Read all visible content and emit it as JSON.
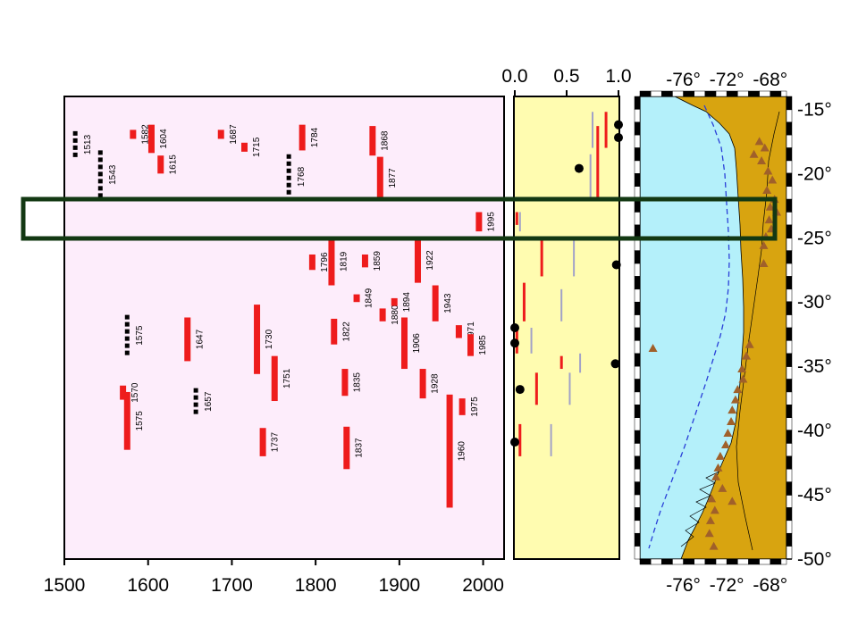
{
  "chart_data": [
    {
      "type": "bar",
      "panel": "rupture-history",
      "xlim": [
        1500,
        2025
      ],
      "ylim": [
        -50,
        -14
      ],
      "x_ticks": [
        "1500",
        "1600",
        "1700",
        "1800",
        "1900",
        "2000"
      ],
      "events": [
        {
          "year": "1513",
          "start": -16.7,
          "end": -18.8,
          "style": "dashed"
        },
        {
          "year": "1543",
          "start": -18.2,
          "end": -22.0,
          "style": "dashed"
        },
        {
          "year": "1582",
          "start": -16.6,
          "end": -17.3,
          "style": "solid"
        },
        {
          "year": "1604",
          "start": -16.2,
          "end": -18.4,
          "style": "solid"
        },
        {
          "year": "1615",
          "start": -18.6,
          "end": -20.0,
          "style": "solid"
        },
        {
          "year": "1687",
          "start": -16.6,
          "end": -17.3,
          "style": "solid"
        },
        {
          "year": "1715",
          "start": -17.6,
          "end": -18.3,
          "style": "solid"
        },
        {
          "year": "1784",
          "start": -16.2,
          "end": -18.2,
          "style": "solid"
        },
        {
          "year": "1768",
          "start": -18.5,
          "end": -22.0,
          "style": "dashed"
        },
        {
          "year": "1868",
          "start": -16.3,
          "end": -18.6,
          "style": "solid"
        },
        {
          "year": "1877",
          "start": -18.7,
          "end": -22.0,
          "style": "solid"
        },
        {
          "year": "1995",
          "start": -23.0,
          "end": -24.5,
          "style": "solid"
        },
        {
          "year": "1796",
          "start": -26.3,
          "end": -27.5,
          "style": "solid"
        },
        {
          "year": "1819",
          "start": -25.0,
          "end": -28.7,
          "style": "solid"
        },
        {
          "year": "1859",
          "start": -26.3,
          "end": -27.3,
          "style": "solid"
        },
        {
          "year": "1922",
          "start": -25.0,
          "end": -28.5,
          "style": "solid"
        },
        {
          "year": "1849",
          "start": -29.4,
          "end": -30.0,
          "style": "solid"
        },
        {
          "year": "1880",
          "start": -30.5,
          "end": -31.5,
          "style": "solid"
        },
        {
          "year": "1894",
          "start": -29.7,
          "end": -30.3,
          "style": "solid"
        },
        {
          "year": "1943",
          "start": -28.7,
          "end": -31.5,
          "style": "solid"
        },
        {
          "year": "1575",
          "start": -31.0,
          "end": -34.2,
          "style": "dashed"
        },
        {
          "year": "1647",
          "start": -31.2,
          "end": -34.6,
          "style": "solid"
        },
        {
          "year": "1730",
          "start": -30.2,
          "end": -35.6,
          "style": "solid"
        },
        {
          "year": "1822",
          "start": -31.3,
          "end": -33.3,
          "style": "solid"
        },
        {
          "year": "1906",
          "start": -31.2,
          "end": -35.2,
          "style": "solid"
        },
        {
          "year": "1971",
          "start": -31.8,
          "end": -32.8,
          "style": "solid"
        },
        {
          "year": "1985",
          "start": -32.5,
          "end": -34.2,
          "style": "solid"
        },
        {
          "year": "1751",
          "start": -34.2,
          "end": -37.7,
          "style": "solid"
        },
        {
          "year": "1835",
          "start": -35.2,
          "end": -37.3,
          "style": "solid"
        },
        {
          "year": "1928",
          "start": -35.2,
          "end": -37.5,
          "style": "solid"
        },
        {
          "year": "1570",
          "start": -36.5,
          "end": -37.6,
          "style": "solid"
        },
        {
          "year": "1657",
          "start": -36.7,
          "end": -38.8,
          "style": "dashed"
        },
        {
          "year": "1975",
          "start": -37.5,
          "end": -38.8,
          "style": "solid"
        },
        {
          "year": "1575",
          "start": -37.0,
          "end": -41.5,
          "style": "solid"
        },
        {
          "year": "1737",
          "start": -39.8,
          "end": -42.0,
          "style": "solid"
        },
        {
          "year": "1837",
          "start": -39.7,
          "end": -43.0,
          "style": "solid"
        },
        {
          "year": "1960",
          "start": -37.2,
          "end": -46.0,
          "style": "solid"
        }
      ]
    },
    {
      "type": "segments",
      "panel": "fraction",
      "xlim": [
        0.0,
        1.0
      ],
      "ylim": [
        -50,
        -14
      ],
      "x_ticks": [
        "0.0",
        "0.5",
        "1.0"
      ],
      "red_segments": [
        {
          "x": 0.88,
          "y1": -15.2,
          "y2": -18.0
        },
        {
          "x": 0.8,
          "y1": -16.3,
          "y2": -22.0
        },
        {
          "x": 0.02,
          "y1": -23.0,
          "y2": -24.0
        },
        {
          "x": 0.26,
          "y1": -25.0,
          "y2": -28.0
        },
        {
          "x": 0.09,
          "y1": -28.5,
          "y2": -31.5
        },
        {
          "x": 0.02,
          "y1": -32.0,
          "y2": -34.0
        },
        {
          "x": 0.45,
          "y1": -34.2,
          "y2": -35.2
        },
        {
          "x": 0.21,
          "y1": -35.5,
          "y2": -38.0
        },
        {
          "x": 0.05,
          "y1": -39.5,
          "y2": -42.0
        }
      ],
      "gray_segments": [
        {
          "x": 0.75,
          "y1": -15.2,
          "y2": -18.0
        },
        {
          "x": 0.73,
          "y1": -18.5,
          "y2": -22.0
        },
        {
          "x": 0.05,
          "y1": -23.0,
          "y2": -24.5
        },
        {
          "x": 0.57,
          "y1": -25.0,
          "y2": -28.0
        },
        {
          "x": 0.45,
          "y1": -29.0,
          "y2": -31.5
        },
        {
          "x": 0.16,
          "y1": -32.0,
          "y2": -34.0
        },
        {
          "x": 0.63,
          "y1": -34.0,
          "y2": -35.5
        },
        {
          "x": 0.53,
          "y1": -35.5,
          "y2": -38.0
        },
        {
          "x": 0.35,
          "y1": -39.5,
          "y2": -42.0
        }
      ],
      "dots": [
        {
          "x": 1.0,
          "y": -16.2
        },
        {
          "x": 1.0,
          "y": -17.2
        },
        {
          "x": 0.62,
          "y": -19.6
        },
        {
          "x": 0.98,
          "y": -27.1
        },
        {
          "x": 0.0,
          "y": -32.0
        },
        {
          "x": 0.0,
          "y": -33.2
        },
        {
          "x": 0.97,
          "y": -34.8
        },
        {
          "x": 0.05,
          "y": -36.8
        },
        {
          "x": 0.0,
          "y": -40.9
        }
      ]
    },
    {
      "type": "map",
      "panel": "chile-map",
      "xlim": [
        -80,
        -66.5
      ],
      "ylim": [
        -50,
        -14
      ],
      "x_ticks": [
        "-76°",
        "-72°",
        "-68°"
      ],
      "y_ticks": [
        "-15°",
        "-20°",
        "-25°",
        "-30°",
        "-35°",
        "-40°",
        "-45°",
        "-50°"
      ],
      "ocean_color": "#b4f0fa",
      "land_color": "#d8a410",
      "volcano_color": "#a0602a",
      "volcanoes": [
        [
          -69.0,
          -17.5
        ],
        [
          -68.5,
          -18.0
        ],
        [
          -69.5,
          -18.5
        ],
        [
          -68.8,
          -19.0
        ],
        [
          -68.2,
          -19.8
        ],
        [
          -67.8,
          -20.5
        ],
        [
          -68.3,
          -21.3
        ],
        [
          -67.6,
          -22.0
        ],
        [
          -68.0,
          -22.6
        ],
        [
          -67.4,
          -23.0
        ],
        [
          -68.1,
          -23.6
        ],
        [
          -67.9,
          -24.3
        ],
        [
          -68.4,
          -24.9
        ],
        [
          -68.6,
          -25.6
        ],
        [
          -68.6,
          -27.0
        ],
        [
          -69.9,
          -33.3
        ],
        [
          -70.2,
          -34.2
        ],
        [
          -70.6,
          -35.2
        ],
        [
          -70.5,
          -36.0
        ],
        [
          -71.0,
          -36.8
        ],
        [
          -71.2,
          -37.6
        ],
        [
          -71.5,
          -38.4
        ],
        [
          -71.6,
          -39.3
        ],
        [
          -71.9,
          -40.2
        ],
        [
          -72.1,
          -41.1
        ],
        [
          -72.6,
          -42.0
        ],
        [
          -72.8,
          -42.9
        ],
        [
          -73.0,
          -43.6
        ],
        [
          -72.4,
          -44.5
        ],
        [
          -73.4,
          -45.3
        ],
        [
          -73.1,
          -46.2
        ],
        [
          -73.5,
          -47.0
        ],
        [
          -73.6,
          -48.0
        ],
        [
          -73.2,
          -49.0
        ],
        [
          -71.5,
          -45.5
        ],
        [
          -78.8,
          -33.6
        ]
      ]
    }
  ],
  "highlight": {
    "color": "#133813",
    "lat_top": -22.8,
    "lat_bottom": -25.5
  }
}
